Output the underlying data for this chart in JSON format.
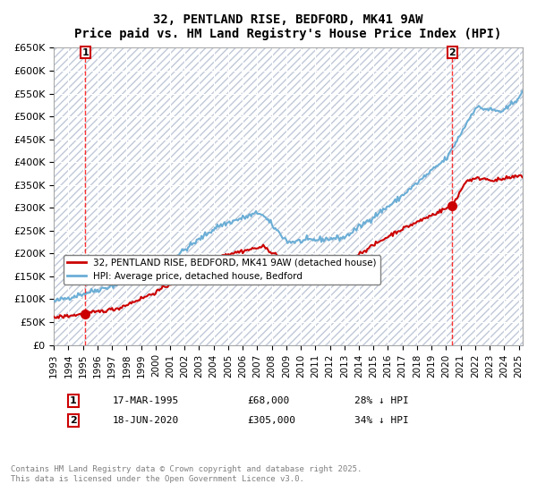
{
  "title": "32, PENTLAND RISE, BEDFORD, MK41 9AW",
  "subtitle": "Price paid vs. HM Land Registry's House Price Index (HPI)",
  "ylabel_ticks": [
    "£0",
    "£50K",
    "£100K",
    "£150K",
    "£200K",
    "£250K",
    "£300K",
    "£350K",
    "£400K",
    "£450K",
    "£500K",
    "£550K",
    "£600K",
    "£650K"
  ],
  "ytick_values": [
    0,
    50000,
    100000,
    150000,
    200000,
    250000,
    300000,
    350000,
    400000,
    450000,
    500000,
    550000,
    600000,
    650000
  ],
  "xtick_years": [
    "1993",
    "1994",
    "1995",
    "1996",
    "1997",
    "1998",
    "1999",
    "2000",
    "2001",
    "2002",
    "2003",
    "2004",
    "2005",
    "2006",
    "2007",
    "2008",
    "2009",
    "2010",
    "2011",
    "2012",
    "2013",
    "2014",
    "2015",
    "2016",
    "2017",
    "2018",
    "2019",
    "2020",
    "2021",
    "2022",
    "2023",
    "2024",
    "2025"
  ],
  "purchase1_date": "17-MAR-1995",
  "purchase1_price": 68000,
  "purchase1_label": "1",
  "purchase2_date": "18-JUN-2020",
  "purchase2_price": 305000,
  "purchase2_label": "2",
  "hpi_color": "#6baed6",
  "price_color": "#cc0000",
  "background_color": "#e8f0ff",
  "hatch_color": "#c0c8d8",
  "legend_label1": "32, PENTLAND RISE, BEDFORD, MK41 9AW (detached house)",
  "legend_label2": "HPI: Average price, detached house, Bedford",
  "annotation1": "1     17-MAR-1995          £68,000          28% ↓ HPI",
  "annotation2": "2     18-JUN-2020          £305,000        34% ↓ HPI",
  "footer": "Contains HM Land Registry data © Crown copyright and database right 2025.\nThis data is licensed under the Open Government Licence v3.0."
}
